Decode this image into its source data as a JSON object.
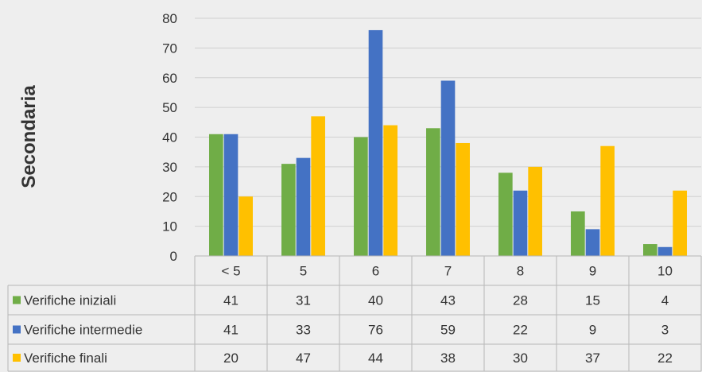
{
  "chart_data": {
    "type": "bar",
    "ylabel": "Secondaria",
    "ylim": [
      0,
      80
    ],
    "yticks": [
      0,
      10,
      20,
      30,
      40,
      50,
      60,
      70,
      80
    ],
    "grid": true,
    "legend": "data-table-left",
    "categories": [
      "< 5",
      "5",
      "6",
      "7",
      "8",
      "9",
      "10"
    ],
    "series": [
      {
        "name": "Verifiche iniziali",
        "color": "#70ad47",
        "values": [
          41,
          31,
          40,
          43,
          28,
          15,
          4
        ]
      },
      {
        "name": "Verifiche intermedie",
        "color": "#4472c4",
        "values": [
          41,
          33,
          76,
          59,
          22,
          9,
          3
        ]
      },
      {
        "name": "Verifiche finali",
        "color": "#ffc000",
        "values": [
          20,
          47,
          44,
          38,
          30,
          37,
          22
        ]
      }
    ]
  }
}
